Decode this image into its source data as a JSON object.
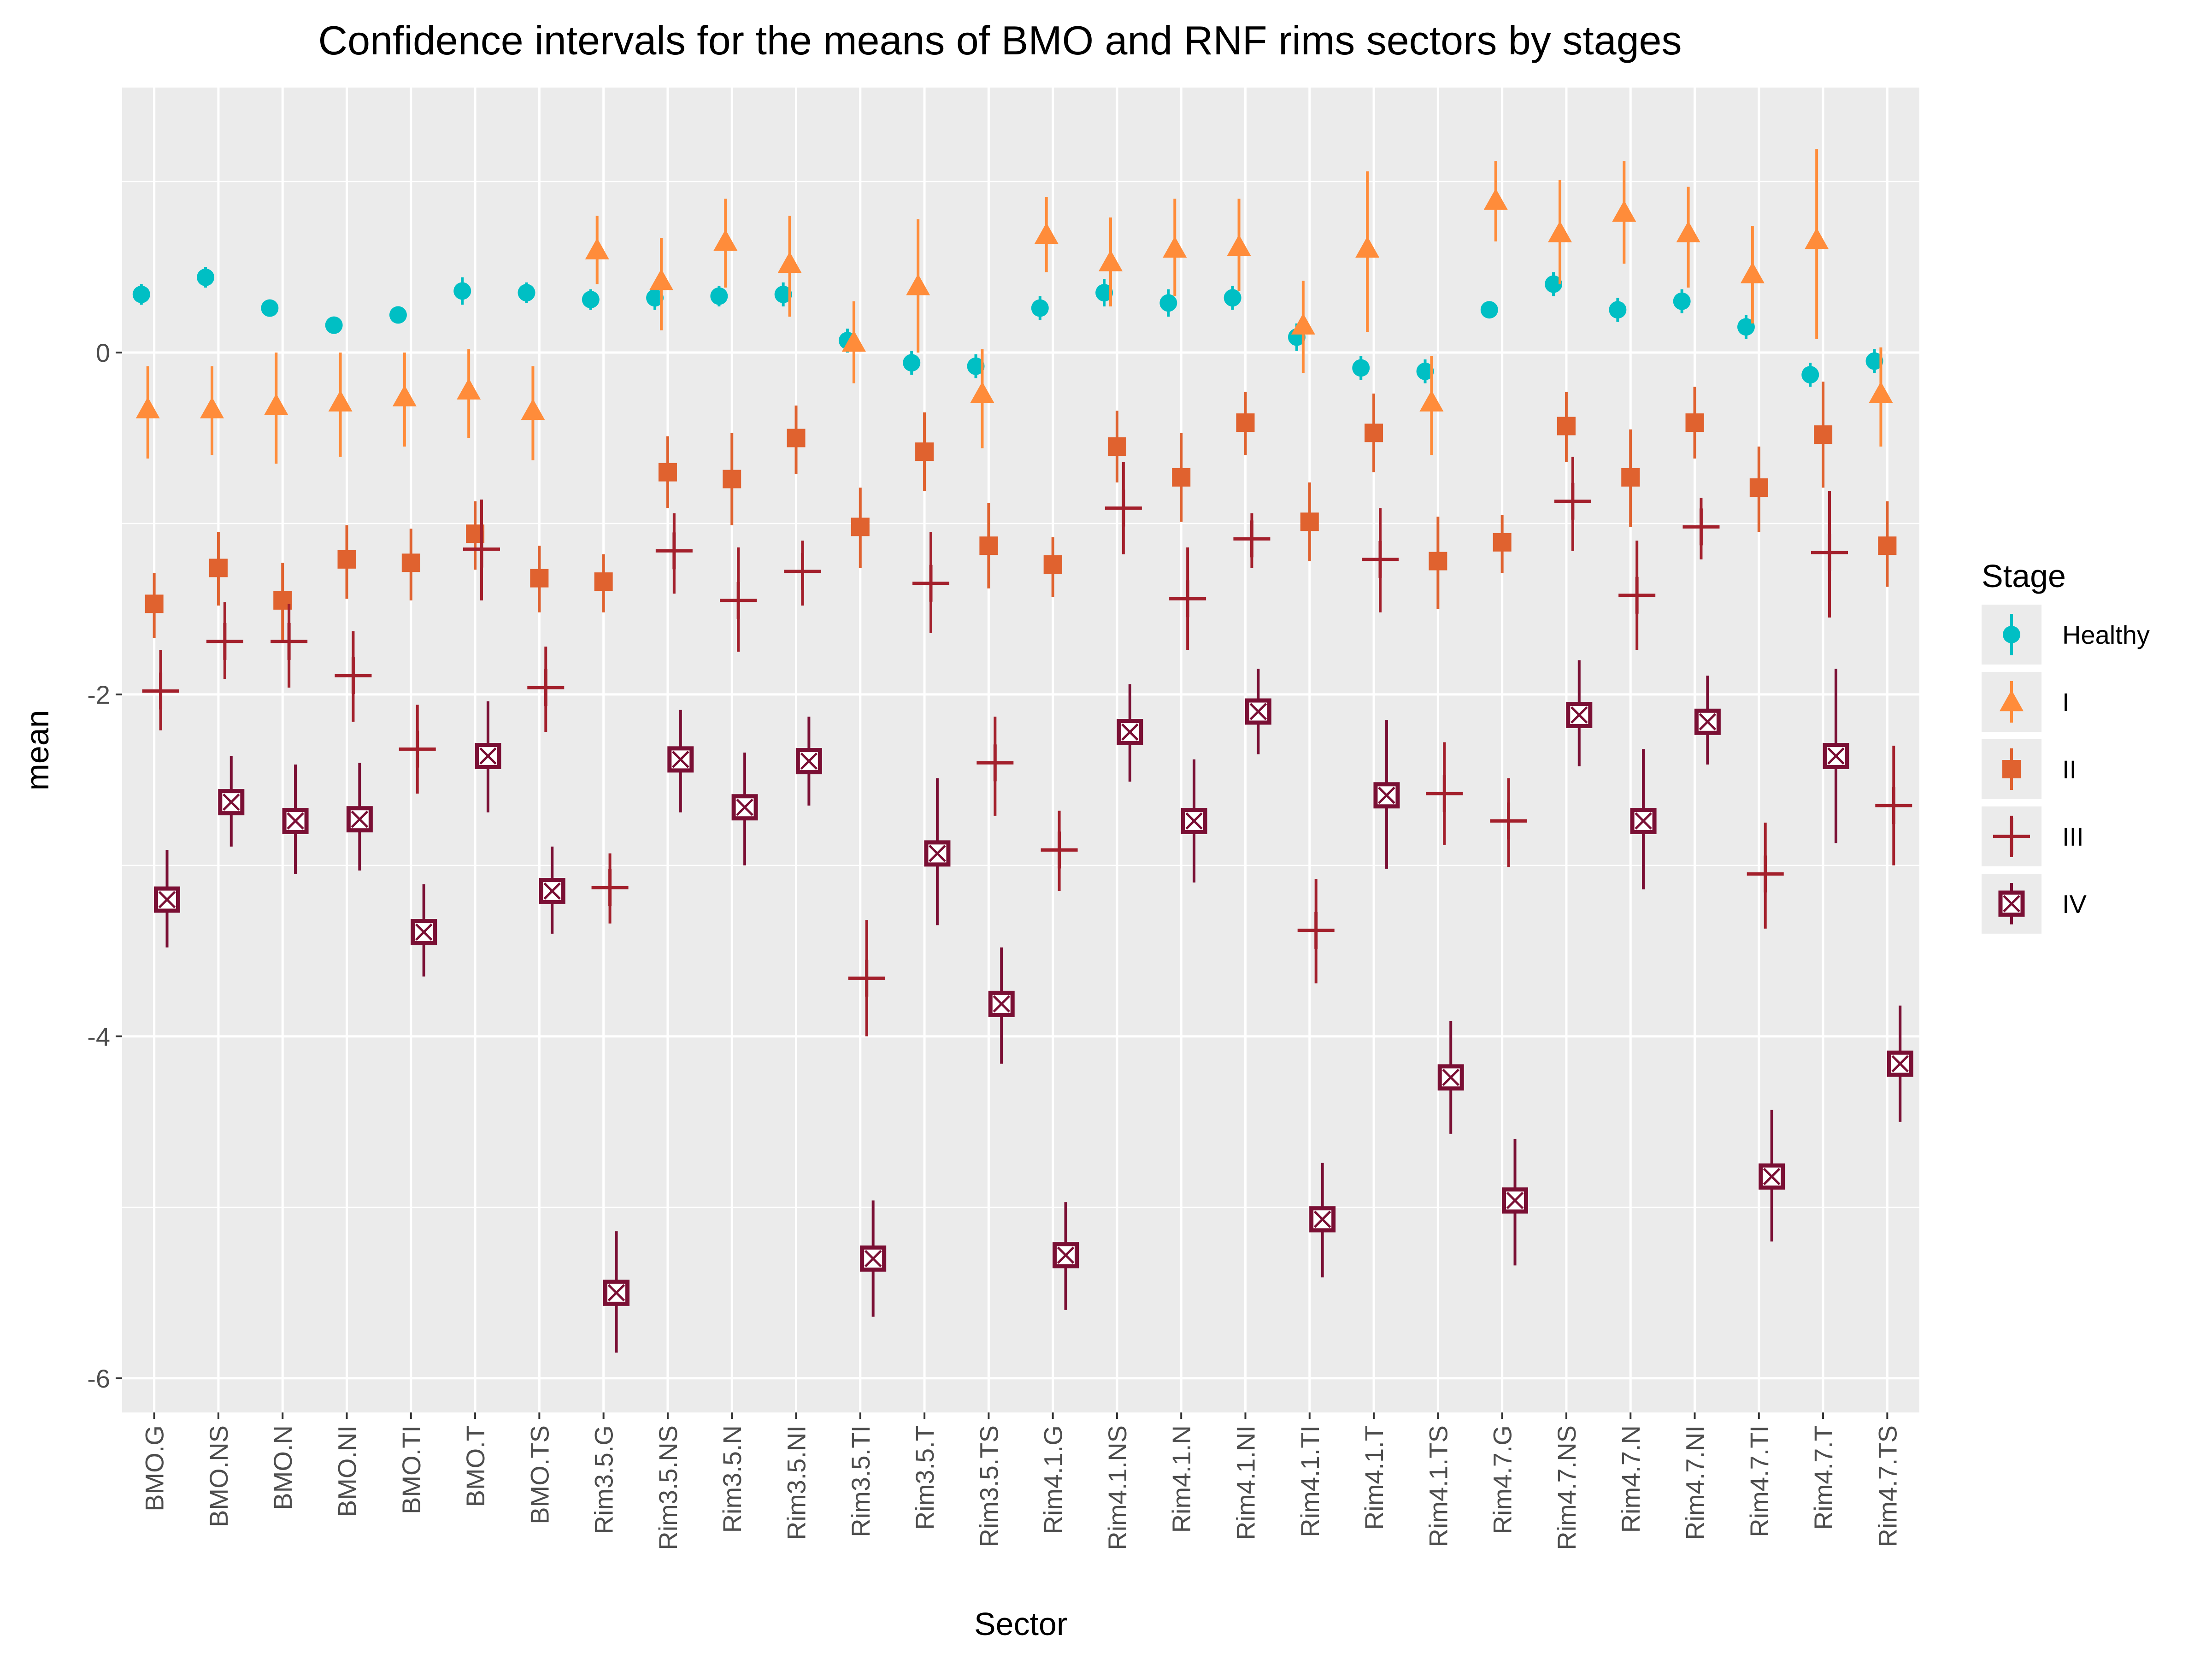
{
  "chart_data": {
    "type": "scatter",
    "subtype": "point-range (confidence intervals)",
    "title": "Confidence intervals for the means of BMO and RNF rims sectors by stages",
    "xlabel": "Sector",
    "ylabel": "mean",
    "ylim": [
      -6.2,
      1.55
    ],
    "yticks": [
      -6,
      -4,
      -2,
      0
    ],
    "ytick_labels": [
      "-6",
      "-4",
      "-2",
      "0"
    ],
    "grid": true,
    "legend_title": "Stage",
    "legend_position": "right",
    "categories": [
      "BMO.G",
      "BMO.NS",
      "BMO.N",
      "BMO.NI",
      "BMO.TI",
      "BMO.T",
      "BMO.TS",
      "Rim3.5.G",
      "Rim3.5.NS",
      "Rim3.5.N",
      "Rim3.5.NI",
      "Rim3.5.TI",
      "Rim3.5.T",
      "Rim3.5.TS",
      "Rim4.1.G",
      "Rim4.1.NS",
      "Rim4.1.N",
      "Rim4.1.NI",
      "Rim4.1.TI",
      "Rim4.1.T",
      "Rim4.1.TS",
      "Rim4.7.G",
      "Rim4.7.NS",
      "Rim4.7.N",
      "Rim4.7.NI",
      "Rim4.7.TI",
      "Rim4.7.T",
      "Rim4.7.TS"
    ],
    "series": [
      {
        "name": "Healthy",
        "color": "#00bfc4",
        "shape": "circle",
        "means": [
          0.34,
          0.44,
          0.26,
          0.16,
          0.22,
          0.36,
          0.35,
          0.31,
          0.32,
          0.33,
          0.34,
          0.07,
          -0.06,
          -0.08,
          0.26,
          0.35,
          0.29,
          0.32,
          0.09,
          -0.09,
          -0.11,
          0.25,
          0.4,
          0.25,
          0.3,
          0.15,
          -0.13,
          -0.05
        ],
        "lower": [
          0.28,
          0.38,
          0.21,
          0.11,
          0.17,
          0.28,
          0.29,
          0.25,
          0.25,
          0.27,
          0.27,
          0.0,
          -0.13,
          -0.15,
          0.19,
          0.27,
          0.21,
          0.25,
          0.01,
          -0.16,
          -0.18,
          0.2,
          0.33,
          0.18,
          0.23,
          0.08,
          -0.2,
          -0.12
        ],
        "upper": [
          0.4,
          0.5,
          0.31,
          0.21,
          0.27,
          0.44,
          0.41,
          0.37,
          0.39,
          0.39,
          0.41,
          0.14,
          0.01,
          -0.01,
          0.33,
          0.43,
          0.37,
          0.39,
          0.17,
          -0.02,
          -0.04,
          0.3,
          0.47,
          0.32,
          0.37,
          0.22,
          -0.06,
          0.02
        ]
      },
      {
        "name": "I",
        "color": "#ff8c3a",
        "shape": "triangle",
        "means": [
          -0.33,
          -0.33,
          -0.31,
          -0.29,
          -0.26,
          -0.22,
          -0.34,
          0.6,
          0.42,
          0.65,
          0.52,
          0.06,
          0.39,
          -0.24,
          0.69,
          0.53,
          0.61,
          0.62,
          0.16,
          0.61,
          -0.29,
          0.89,
          0.7,
          0.82,
          0.7,
          0.46,
          0.66,
          -0.24
        ],
        "lower": [
          -0.62,
          -0.6,
          -0.65,
          -0.61,
          -0.55,
          -0.5,
          -0.63,
          0.4,
          0.13,
          0.38,
          0.21,
          -0.18,
          0.0,
          -0.56,
          0.47,
          0.27,
          0.33,
          0.36,
          -0.12,
          0.12,
          -0.6,
          0.65,
          0.4,
          0.52,
          0.38,
          0.17,
          0.08,
          -0.55
        ],
        "upper": [
          -0.08,
          -0.08,
          0.0,
          0.0,
          0.0,
          0.02,
          -0.08,
          0.8,
          0.67,
          0.9,
          0.8,
          0.3,
          0.78,
          0.02,
          0.91,
          0.79,
          0.9,
          0.9,
          0.42,
          1.06,
          -0.02,
          1.12,
          1.01,
          1.12,
          0.97,
          0.74,
          1.19,
          0.03
        ]
      },
      {
        "name": "II",
        "color": "#e0622f",
        "shape": "square",
        "means": [
          -1.47,
          -1.26,
          -1.45,
          -1.21,
          -1.23,
          -1.06,
          -1.32,
          -1.34,
          -0.7,
          -0.74,
          -0.5,
          -1.02,
          -0.58,
          -1.13,
          -1.24,
          -0.55,
          -0.73,
          -0.41,
          -0.99,
          -0.47,
          -1.22,
          -1.11,
          -0.43,
          -0.73,
          -0.41,
          -0.79,
          -0.48,
          -1.13
        ],
        "lower": [
          -1.67,
          -1.48,
          -1.68,
          -1.44,
          -1.45,
          -1.27,
          -1.52,
          -1.52,
          -0.91,
          -1.01,
          -0.71,
          -1.26,
          -0.81,
          -1.38,
          -1.43,
          -0.76,
          -0.99,
          -0.6,
          -1.22,
          -0.7,
          -1.5,
          -1.29,
          -0.64,
          -1.02,
          -0.62,
          -1.05,
          -0.79,
          -1.37
        ],
        "upper": [
          -1.29,
          -1.05,
          -1.23,
          -1.01,
          -1.03,
          -0.87,
          -1.13,
          -1.18,
          -0.49,
          -0.47,
          -0.31,
          -0.79,
          -0.35,
          -0.88,
          -1.08,
          -0.34,
          -0.47,
          -0.23,
          -0.76,
          -0.24,
          -0.96,
          -0.95,
          -0.23,
          -0.45,
          -0.2,
          -0.55,
          -0.17,
          -0.87
        ]
      },
      {
        "name": "III",
        "color": "#a3202c",
        "shape": "plus",
        "means": [
          -1.98,
          -1.69,
          -1.69,
          -1.89,
          -2.32,
          -1.15,
          -1.96,
          -3.13,
          -1.16,
          -1.45,
          -1.28,
          -3.66,
          -1.35,
          -2.4,
          -2.91,
          -0.91,
          -1.44,
          -1.09,
          -3.38,
          -1.21,
          -2.58,
          -2.74,
          -0.87,
          -1.42,
          -1.02,
          -3.05,
          -1.17,
          -2.65
        ],
        "lower": [
          -2.21,
          -1.91,
          -1.96,
          -2.16,
          -2.58,
          -1.45,
          -2.22,
          -3.34,
          -1.41,
          -1.75,
          -1.48,
          -4.0,
          -1.64,
          -2.71,
          -3.15,
          -1.18,
          -1.74,
          -1.26,
          -3.69,
          -1.52,
          -2.88,
          -3.01,
          -1.16,
          -1.74,
          -1.21,
          -3.37,
          -1.55,
          -3.0
        ],
        "upper": [
          -1.74,
          -1.46,
          -1.47,
          -1.63,
          -2.06,
          -0.86,
          -1.72,
          -2.93,
          -0.94,
          -1.14,
          -1.1,
          -3.32,
          -1.05,
          -2.13,
          -2.68,
          -0.64,
          -1.14,
          -0.94,
          -3.08,
          -0.91,
          -2.28,
          -2.49,
          -0.61,
          -1.1,
          -0.85,
          -2.75,
          -0.81,
          -2.3
        ]
      },
      {
        "name": "IV",
        "color": "#7a0f34",
        "shape": "square-cross",
        "means": [
          -3.2,
          -2.63,
          -2.74,
          -2.73,
          -3.39,
          -2.36,
          -3.15,
          -5.5,
          -2.38,
          -2.66,
          -2.39,
          -5.3,
          -2.93,
          -3.81,
          -5.28,
          -2.22,
          -2.74,
          -2.1,
          -5.07,
          -2.59,
          -4.24,
          -4.96,
          -2.12,
          -2.74,
          -2.16,
          -4.82,
          -2.36,
          -4.16
        ],
        "lower": [
          -3.48,
          -2.89,
          -3.05,
          -3.03,
          -3.65,
          -2.69,
          -3.4,
          -5.85,
          -2.69,
          -3.0,
          -2.65,
          -5.64,
          -3.35,
          -4.16,
          -5.6,
          -2.51,
          -3.1,
          -2.35,
          -5.41,
          -3.02,
          -4.57,
          -5.34,
          -2.42,
          -3.14,
          -2.41,
          -5.2,
          -2.87,
          -4.5
        ],
        "upper": [
          -2.91,
          -2.36,
          -2.41,
          -2.4,
          -3.11,
          -2.04,
          -2.89,
          -5.14,
          -2.09,
          -2.34,
          -2.13,
          -4.96,
          -2.49,
          -3.48,
          -4.97,
          -1.94,
          -2.38,
          -1.85,
          -4.74,
          -2.15,
          -3.91,
          -4.6,
          -1.8,
          -2.32,
          -1.89,
          -4.43,
          -1.85,
          -3.82
        ]
      }
    ]
  }
}
